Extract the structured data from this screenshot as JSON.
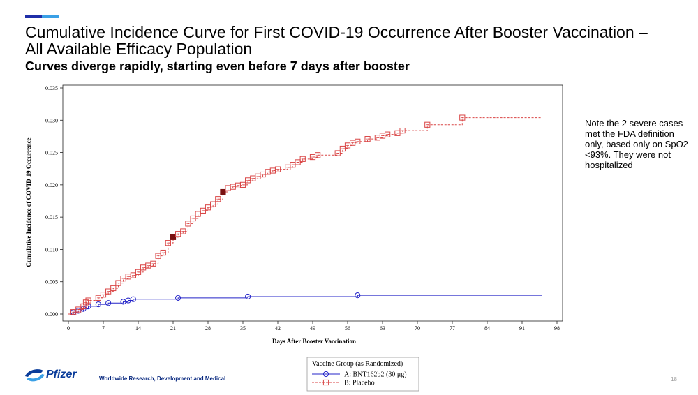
{
  "slide": {
    "title": "Cumulative Incidence Curve for First COVID-19 Occurrence After Booster Vaccination – All Available Efficacy Population",
    "subtitle": "Curves diverge rapidly, starting even before 7 days after booster",
    "note": "Note the 2 severe cases met the FDA definition only, based only on SpO2 <93%. They were not hospitalized",
    "logo_text": "Pfizer",
    "footer": "Worldwide Research, Development and Medical",
    "page_number": "18"
  },
  "colors": {
    "vaccine": "#2424c8",
    "placebo": "#d94545",
    "severe": "#7a1010",
    "accent_dark": "#1f2fa8",
    "accent_light": "#3aa0e6"
  },
  "chart_data": {
    "type": "line",
    "xlabel": "Days After Booster Vaccination",
    "ylabel": "Cumulative Incidence of COVID-19 Occurrence",
    "xlim": [
      0,
      98
    ],
    "ylim": [
      0,
      0.035
    ],
    "x_ticks": [
      "0",
      "7",
      "14",
      "21",
      "28",
      "35",
      "42",
      "49",
      "56",
      "63",
      "70",
      "77",
      "84",
      "91",
      "98"
    ],
    "y_ticks": [
      "0.000",
      "0.005",
      "0.010",
      "0.015",
      "0.020",
      "0.025",
      "0.030",
      "0.035"
    ],
    "legend_title": "Vaccine Group (as Randomized)",
    "legend_placement": "bottom-center",
    "grid": false,
    "series": [
      {
        "name": "A: BNT162b2 (30 μg)",
        "style": "solid",
        "marker": "circle",
        "points": [
          [
            1,
            0.0003
          ],
          [
            2,
            0.0005
          ],
          [
            3,
            0.0008
          ],
          [
            4,
            0.0012
          ],
          [
            6,
            0.0015
          ],
          [
            8,
            0.0017
          ],
          [
            11,
            0.0019
          ],
          [
            12,
            0.0021
          ],
          [
            13,
            0.0023
          ],
          [
            22,
            0.0025
          ],
          [
            36,
            0.0027
          ],
          [
            58,
            0.0029
          ]
        ],
        "end_x": 95
      },
      {
        "name": "B: Placebo",
        "style": "dashed",
        "marker": "square",
        "points": [
          [
            1,
            0.0003
          ],
          [
            2,
            0.0007
          ],
          [
            3,
            0.0012
          ],
          [
            3.5,
            0.0018
          ],
          [
            4,
            0.0021
          ],
          [
            6,
            0.0025
          ],
          [
            7,
            0.003
          ],
          [
            8,
            0.0035
          ],
          [
            9,
            0.004
          ],
          [
            10,
            0.0048
          ],
          [
            11,
            0.0055
          ],
          [
            12,
            0.0058
          ],
          [
            13,
            0.006
          ],
          [
            14,
            0.0065
          ],
          [
            15,
            0.0072
          ],
          [
            16,
            0.0075
          ],
          [
            17,
            0.0078
          ],
          [
            18,
            0.009
          ],
          [
            19,
            0.0095
          ],
          [
            20,
            0.011
          ],
          [
            21,
            0.0119
          ],
          [
            22,
            0.0124
          ],
          [
            23,
            0.0128
          ],
          [
            24,
            0.014
          ],
          [
            25,
            0.0148
          ],
          [
            26,
            0.0155
          ],
          [
            27,
            0.016
          ],
          [
            28,
            0.0165
          ],
          [
            29,
            0.017
          ],
          [
            30,
            0.0178
          ],
          [
            31,
            0.0189
          ],
          [
            32,
            0.0195
          ],
          [
            33,
            0.0197
          ],
          [
            34,
            0.0199
          ],
          [
            35,
            0.02
          ],
          [
            36,
            0.0207
          ],
          [
            37,
            0.021
          ],
          [
            38,
            0.0213
          ],
          [
            39,
            0.0216
          ],
          [
            40,
            0.022
          ],
          [
            41,
            0.0222
          ],
          [
            42,
            0.0224
          ],
          [
            44,
            0.0227
          ],
          [
            45,
            0.0231
          ],
          [
            46,
            0.0235
          ],
          [
            47,
            0.024
          ],
          [
            49,
            0.0243
          ],
          [
            50,
            0.0246
          ],
          [
            54,
            0.0249
          ],
          [
            55,
            0.0256
          ],
          [
            56,
            0.0261
          ],
          [
            57,
            0.0265
          ],
          [
            58,
            0.0267
          ],
          [
            60,
            0.0271
          ],
          [
            62,
            0.0273
          ],
          [
            63,
            0.0276
          ],
          [
            64,
            0.0278
          ],
          [
            66,
            0.028
          ],
          [
            67,
            0.0284
          ],
          [
            72,
            0.0293
          ],
          [
            79,
            0.0304
          ]
        ],
        "severe_points": [
          [
            21,
            0.0119
          ],
          [
            31,
            0.0189
          ]
        ],
        "end_x": 95
      }
    ]
  }
}
